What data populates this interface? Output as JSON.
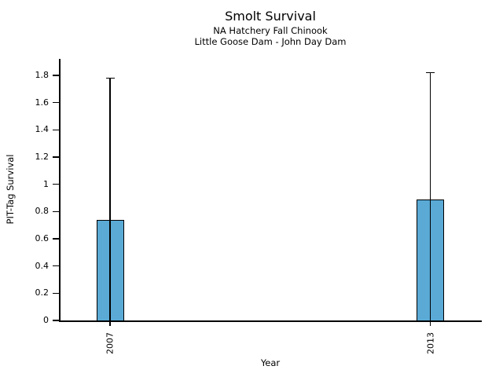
{
  "chart_data": {
    "type": "bar",
    "title": "Smolt Survival",
    "subtitles": [
      "NA Hatchery Fall Chinook",
      "Little Goose Dam - John Day Dam"
    ],
    "xlabel": "Year",
    "ylabel": "PIT-Tag Survival",
    "categories": [
      "2007",
      "2013"
    ],
    "series": [
      {
        "name": "PIT-Tag Survival",
        "values": [
          0.74,
          0.89
        ]
      }
    ],
    "error_bars": {
      "upper": [
        1.78,
        1.82
      ],
      "lower": [
        0,
        0
      ]
    },
    "ylim": [
      0,
      1.9
    ],
    "ytick_labels": [
      "0",
      "0.2",
      "0.4",
      "0.6",
      "0.8",
      "1",
      "1.2",
      "1.4",
      "1.6",
      "1.8"
    ],
    "grid": false,
    "legend": "none",
    "bar_color": "#5aaad5",
    "bar_edge_color": "#000000",
    "axis_color": "#000000"
  }
}
